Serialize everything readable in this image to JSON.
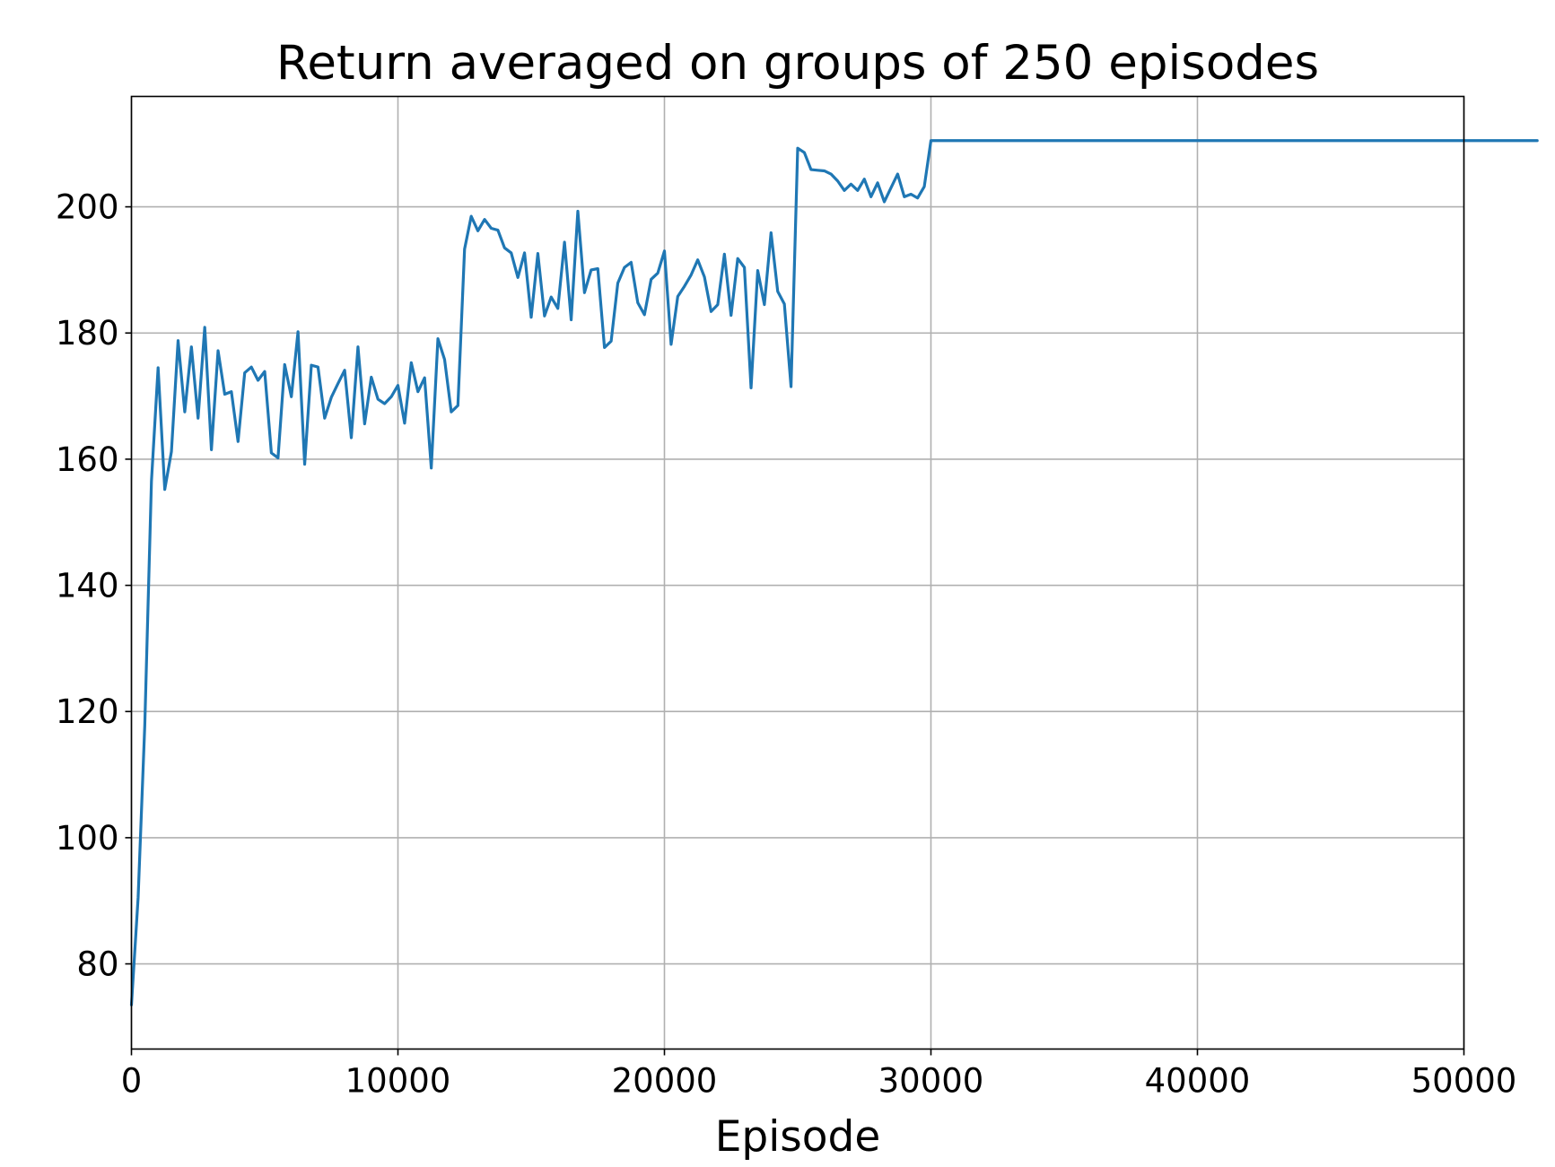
{
  "chart_data": {
    "type": "line",
    "title": "Return averaged on groups of 250 episodes",
    "xlabel": "Episode",
    "ylabel": "",
    "xlim": [
      0,
      50000
    ],
    "ylim": [
      66.5,
      217.5
    ],
    "grid": true,
    "x_ticks": [
      {
        "value": 0,
        "label": "0"
      },
      {
        "value": 10000,
        "label": "10000"
      },
      {
        "value": 20000,
        "label": "20000"
      },
      {
        "value": 30000,
        "label": "30000"
      },
      {
        "value": 40000,
        "label": "40000"
      },
      {
        "value": 50000,
        "label": "50000"
      }
    ],
    "y_ticks": [
      {
        "value": 80,
        "label": "80"
      },
      {
        "value": 100,
        "label": "100"
      },
      {
        "value": 120,
        "label": "120"
      },
      {
        "value": 140,
        "label": "140"
      },
      {
        "value": 160,
        "label": "160"
      },
      {
        "value": 180,
        "label": "180"
      },
      {
        "value": 200,
        "label": "200"
      }
    ],
    "series": [
      {
        "color": "#1f77b4",
        "x_step": 250,
        "values": [
          73.5,
          90.5,
          117.8,
          156.5,
          174.5,
          155.2,
          161.2,
          178.8,
          167.5,
          177.8,
          166.5,
          180.9,
          161.5,
          177.2,
          170.3,
          170.7,
          162.8,
          173.7,
          174.6,
          172.5,
          173.9,
          161.0,
          160.2,
          175.0,
          169.9,
          180.2,
          159.2,
          174.9,
          174.6,
          166.5,
          169.8,
          172.0,
          174.1,
          163.4,
          177.8,
          165.6,
          173.0,
          169.5,
          168.8,
          169.9,
          171.7,
          165.7,
          175.3,
          170.7,
          172.9,
          158.6,
          179.1,
          175.8,
          167.5,
          168.5,
          193.3,
          198.5,
          196.2,
          198.0,
          196.6,
          196.3,
          193.5,
          192.7,
          188.8,
          192.7,
          182.5,
          192.6,
          182.7,
          185.7,
          183.9,
          194.4,
          182.1,
          199.3,
          186.4,
          190.0,
          190.2,
          177.7,
          178.7,
          187.9,
          190.4,
          191.2,
          184.8,
          182.9,
          188.5,
          189.5,
          193.0,
          178.2,
          185.8,
          187.4,
          189.2,
          191.6,
          188.9,
          183.4,
          184.5,
          192.5,
          182.8,
          191.8,
          190.4,
          171.3,
          189.9,
          184.5,
          195.9,
          186.6,
          184.6,
          171.5,
          209.3,
          208.6,
          205.9,
          205.8,
          205.7,
          205.2,
          204.1,
          202.6,
          203.6,
          202.6,
          204.4,
          201.6,
          203.8,
          200.8,
          203.0,
          205.2,
          201.6,
          202.0,
          201.4,
          203.2,
          210.5,
          210.5,
          210.5,
          210.5,
          210.5,
          210.5,
          210.5,
          210.5,
          210.5,
          210.5,
          210.5,
          210.5,
          210.5,
          210.5,
          210.5,
          210.5,
          210.5,
          210.5,
          210.5,
          210.5,
          210.5,
          210.5,
          210.5,
          210.5,
          210.5,
          210.5,
          210.5,
          210.5,
          210.5,
          210.5,
          210.5,
          210.5,
          210.5,
          210.5,
          210.5,
          210.5,
          210.5,
          210.5,
          210.5,
          210.5,
          210.5,
          210.5,
          210.5,
          210.5,
          210.5,
          210.5,
          210.5,
          210.5,
          210.5,
          210.5,
          210.5,
          210.5,
          210.5,
          210.5,
          210.5,
          210.5,
          210.5,
          210.5,
          210.5,
          210.5,
          210.5,
          210.5,
          210.5,
          210.5,
          210.5,
          210.5,
          210.5,
          210.5,
          210.5,
          210.5,
          210.5,
          210.5,
          210.5,
          210.5,
          210.5,
          210.5,
          210.5,
          210.5,
          210.5,
          210.5,
          210.5,
          210.5,
          210.5,
          210.5,
          210.5,
          210.5,
          210.5,
          210.5,
          210.5,
          210.5,
          210.5,
          210.5
        ]
      }
    ]
  }
}
